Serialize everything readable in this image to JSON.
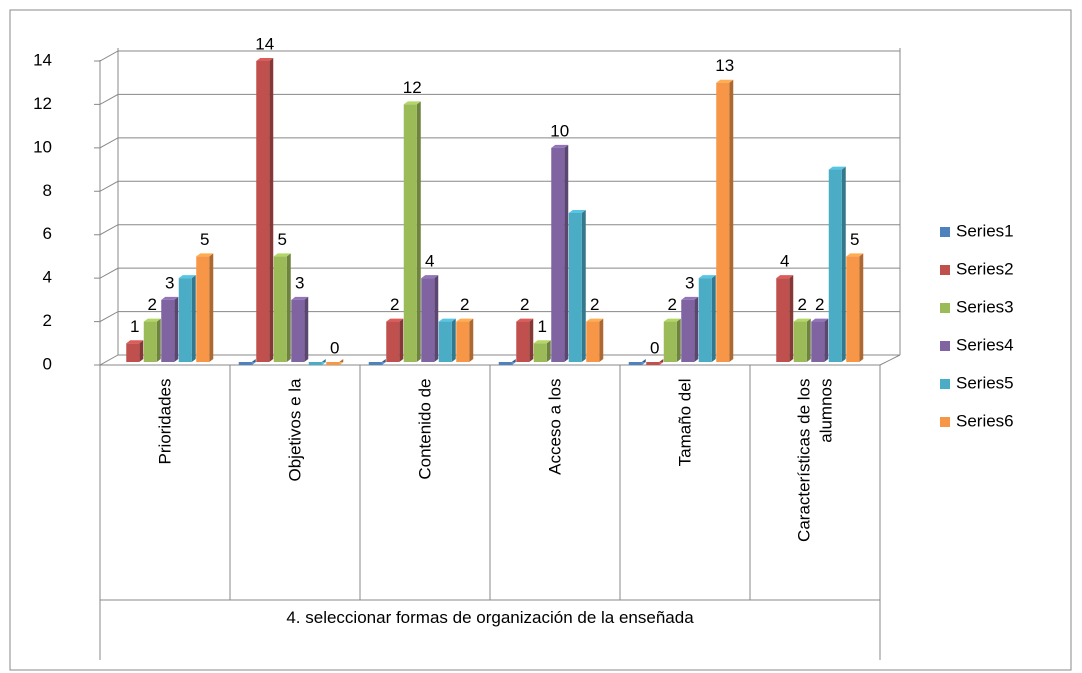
{
  "chart_data": {
    "type": "bar3d",
    "categories": [
      "Prioridades",
      "Objetivos e la",
      "Contenido de",
      "Acceso a los",
      "Tamaño del",
      "Características de los alumnos"
    ],
    "group_label": "4. seleccionar formas de organización de la enseñada",
    "series": [
      {
        "name": "Series1",
        "color": "#4f81bd",
        "labels": false,
        "values": [
          null,
          0,
          0,
          0,
          0,
          null
        ]
      },
      {
        "name": "Series2",
        "color": "#c0504d",
        "labels": true,
        "values": [
          1,
          14,
          2,
          2,
          0,
          4
        ]
      },
      {
        "name": "Series3",
        "color": "#9bbb59",
        "labels": true,
        "values": [
          2,
          5,
          12,
          1,
          2,
          2
        ]
      },
      {
        "name": "Series4",
        "color": "#8064a2",
        "labels": true,
        "values": [
          3,
          3,
          4,
          10,
          3,
          2
        ]
      },
      {
        "name": "Series5",
        "color": "#4bacc6",
        "labels": false,
        "values": [
          4,
          0,
          2,
          7,
          4,
          9
        ]
      },
      {
        "name": "Series6",
        "color": "#f79646",
        "labels": true,
        "values": [
          5,
          0,
          2,
          2,
          13,
          5
        ]
      }
    ],
    "ylim": [
      0,
      14
    ],
    "yticks": [
      0,
      2,
      4,
      6,
      8,
      10,
      12,
      14
    ],
    "grid": true,
    "legend": "right"
  }
}
